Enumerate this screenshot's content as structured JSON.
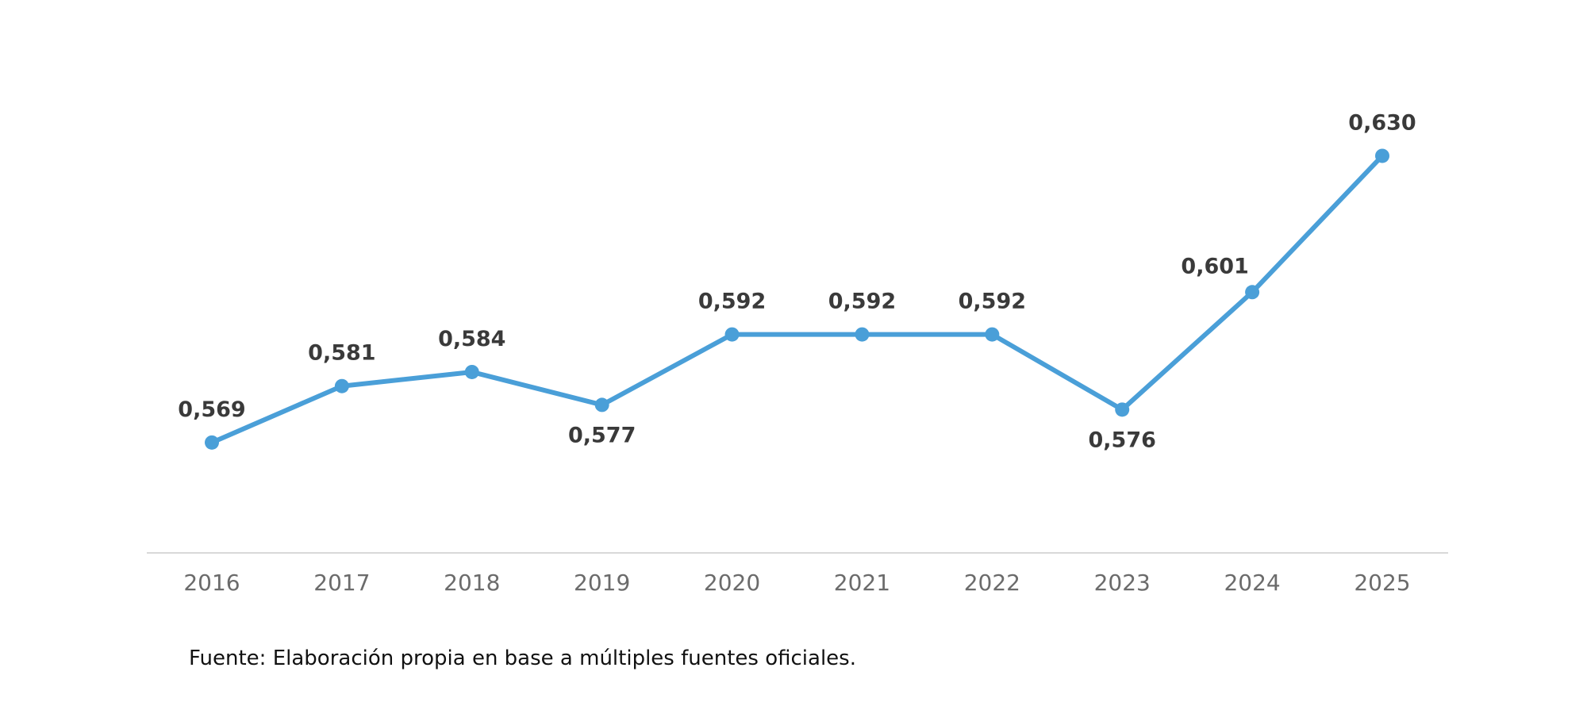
{
  "chart_data": {
    "type": "line",
    "categories": [
      "2016",
      "2017",
      "2018",
      "2019",
      "2020",
      "2021",
      "2022",
      "2023",
      "2024",
      "2025"
    ],
    "series": [
      {
        "values": [
          0.569,
          0.581,
          0.584,
          0.577,
          0.592,
          0.592,
          0.592,
          0.576,
          0.601,
          0.63
        ],
        "labels": [
          "0,569",
          "0,581",
          "0,584",
          "0,577",
          "0,592",
          "0,592",
          "0,592",
          "0,576",
          "0,601",
          "0,630"
        ],
        "label_positions": [
          "above",
          "above",
          "above",
          "below",
          "above",
          "above",
          "above",
          "below",
          "above-left",
          "above"
        ]
      }
    ],
    "title": "",
    "xlabel": "",
    "ylabel": "",
    "ylim": [
      0.545,
      0.637
    ],
    "grid": false,
    "legend": "none",
    "colors": {
      "line": "#4a9fd8",
      "axis": "#d9d9d9",
      "data_label": "#3a3a3a",
      "tick_label": "#6b6b6b"
    }
  },
  "footer": {
    "source": "Fuente: Elaboración propia en base a múltiples fuentes oficiales."
  }
}
